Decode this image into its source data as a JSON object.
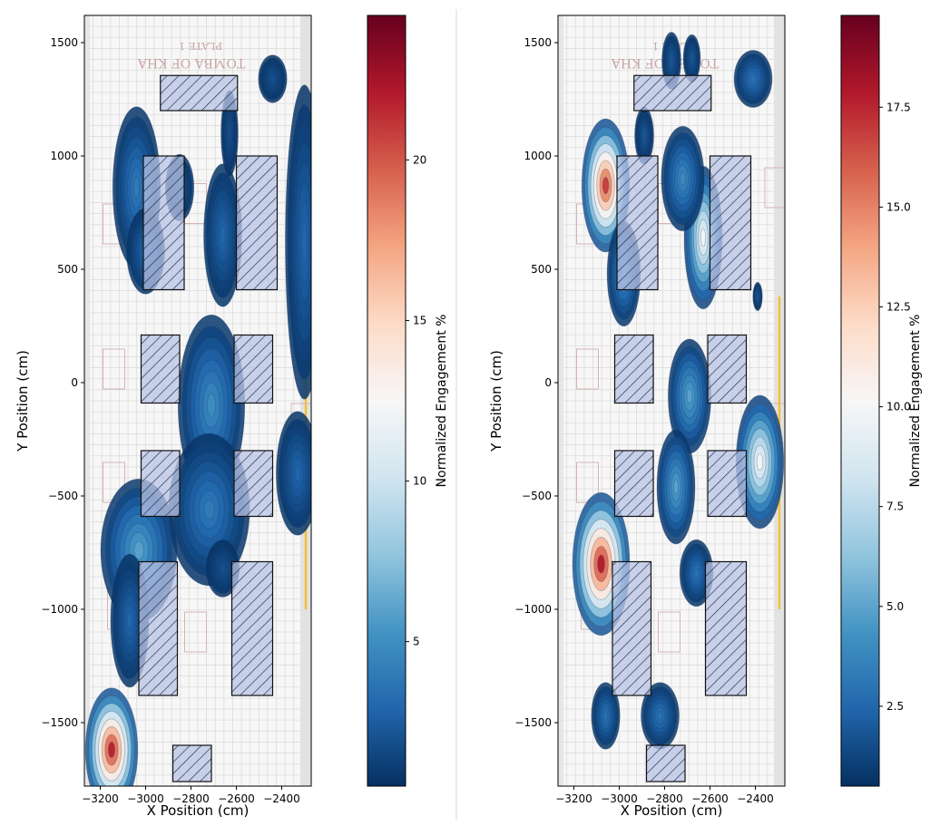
{
  "chart_data": [
    {
      "type": "heatmap",
      "panel": "left",
      "xlabel": "X Position (cm)",
      "ylabel": "Y Position (cm)",
      "xlim": [
        -3270,
        -2270
      ],
      "ylim": [
        -1780,
        1620
      ],
      "x_ticks": [
        -3200,
        -3000,
        -2800,
        -2600,
        -2400
      ],
      "x_tick_labels": [
        "−3200",
        "−3000",
        "−2800",
        "−2600",
        "−2400"
      ],
      "y_ticks": [
        -1500,
        -1000,
        -500,
        0,
        500,
        1000,
        1500
      ],
      "y_tick_labels": [
        "−1500",
        "−1000",
        "−500",
        "0",
        "500",
        "1000",
        "1500"
      ],
      "colorbar": {
        "label": "Normalized Engagement %",
        "colormap": "RdBu_r",
        "range": [
          0.5,
          24.5
        ],
        "ticks": [
          5,
          10,
          15,
          20
        ],
        "tick_labels": [
          "5",
          "10",
          "15",
          "20"
        ]
      },
      "background_text": "TOMBA OF KHA",
      "background_text_2": "PLATE 1",
      "hatched_zones": [
        {
          "x": [
            -3010,
            -2830
          ],
          "y": [
            410,
            1000
          ]
        },
        {
          "x": [
            -2600,
            -2420
          ],
          "y": [
            410,
            1000
          ]
        },
        {
          "x": [
            -3020,
            -2850
          ],
          "y": [
            -90,
            210
          ]
        },
        {
          "x": [
            -2610,
            -2440
          ],
          "y": [
            -90,
            210
          ]
        },
        {
          "x": [
            -3020,
            -2850
          ],
          "y": [
            -590,
            -300
          ]
        },
        {
          "x": [
            -2610,
            -2440
          ],
          "y": [
            -590,
            -300
          ]
        },
        {
          "x": [
            -3030,
            -2860
          ],
          "y": [
            -1380,
            -790
          ]
        },
        {
          "x": [
            -2620,
            -2440
          ],
          "y": [
            -1380,
            -790
          ]
        },
        {
          "x": [
            -2935,
            -2595
          ],
          "y": [
            1200,
            1355
          ]
        },
        {
          "x": [
            -2880,
            -2710
          ],
          "y": [
            -1760,
            -1600
          ]
        }
      ],
      "hotspots": [
        {
          "x": -3040,
          "y": 860,
          "sx": 50,
          "sy": 170,
          "peak": 4
        },
        {
          "x": -3000,
          "y": 580,
          "sx": 40,
          "sy": 90,
          "peak": 3
        },
        {
          "x": -2710,
          "y": -100,
          "sx": 70,
          "sy": 190,
          "peak": 5
        },
        {
          "x": -2720,
          "y": -560,
          "sx": 85,
          "sy": 160,
          "peak": 4
        },
        {
          "x": -2660,
          "y": -820,
          "sx": 35,
          "sy": 60,
          "peak": 2
        },
        {
          "x": -2330,
          "y": -400,
          "sx": 45,
          "sy": 130,
          "peak": 3
        },
        {
          "x": -2300,
          "y": 620,
          "sx": 40,
          "sy": 330,
          "peak": 3
        },
        {
          "x": -2660,
          "y": 650,
          "sx": 40,
          "sy": 150,
          "peak": 3
        },
        {
          "x": -2630,
          "y": 1100,
          "sx": 18,
          "sy": 90,
          "peak": 2
        },
        {
          "x": -2850,
          "y": 860,
          "sx": 30,
          "sy": 70,
          "peak": 2
        },
        {
          "x": -2440,
          "y": 1340,
          "sx": 30,
          "sy": 50,
          "peak": 2
        },
        {
          "x": -3030,
          "y": -740,
          "sx": 80,
          "sy": 150,
          "peak": 6
        },
        {
          "x": -3070,
          "y": -1050,
          "sx": 40,
          "sy": 140,
          "peak": 3
        },
        {
          "x": -3150,
          "y": -1620,
          "sx": 55,
          "sy": 130,
          "peak": 22
        }
      ]
    },
    {
      "type": "heatmap",
      "panel": "right",
      "xlabel": "X Position (cm)",
      "ylabel": "Y Position (cm)",
      "xlim": [
        -3270,
        -2270
      ],
      "ylim": [
        -1780,
        1620
      ],
      "x_ticks": [
        -3200,
        -3000,
        -2800,
        -2600,
        -2400
      ],
      "x_tick_labels": [
        "−3200",
        "−3000",
        "−2800",
        "−2600",
        "−2400"
      ],
      "y_ticks": [
        -1500,
        -1000,
        -500,
        0,
        500,
        1000,
        1500
      ],
      "y_tick_labels": [
        "−1500",
        "−1000",
        "−500",
        "0",
        "500",
        "1000",
        "1500"
      ],
      "colorbar": {
        "label": "Normalized Engagement %",
        "colormap": "RdBu_r",
        "range": [
          0.5,
          19.8
        ],
        "ticks": [
          2.5,
          5.0,
          7.5,
          10.0,
          12.5,
          15.0,
          17.5
        ],
        "tick_labels": [
          "2.5",
          "5.0",
          "7.5",
          "10.0",
          "12.5",
          "15.0",
          "17.5"
        ]
      },
      "background_text": "TOMBA OF KHA",
      "background_text_2": "PLATE 1",
      "hatched_zones": [
        {
          "x": [
            -3010,
            -2830
          ],
          "y": [
            410,
            1000
          ]
        },
        {
          "x": [
            -2600,
            -2420
          ],
          "y": [
            410,
            1000
          ]
        },
        {
          "x": [
            -3020,
            -2850
          ],
          "y": [
            -90,
            210
          ]
        },
        {
          "x": [
            -2610,
            -2440
          ],
          "y": [
            -90,
            210
          ]
        },
        {
          "x": [
            -3020,
            -2850
          ],
          "y": [
            -590,
            -300
          ]
        },
        {
          "x": [
            -2610,
            -2440
          ],
          "y": [
            -590,
            -300
          ]
        },
        {
          "x": [
            -3030,
            -2860
          ],
          "y": [
            -1380,
            -790
          ]
        },
        {
          "x": [
            -2620,
            -2440
          ],
          "y": [
            -1380,
            -790
          ]
        },
        {
          "x": [
            -2935,
            -2595
          ],
          "y": [
            1200,
            1355
          ]
        },
        {
          "x": [
            -2880,
            -2710
          ],
          "y": [
            -1760,
            -1600
          ]
        }
      ],
      "hotspots": [
        {
          "x": -3060,
          "y": 870,
          "sx": 50,
          "sy": 140,
          "peak": 17
        },
        {
          "x": -2980,
          "y": 480,
          "sx": 35,
          "sy": 110,
          "peak": 4
        },
        {
          "x": -2630,
          "y": 640,
          "sx": 40,
          "sy": 150,
          "peak": 10
        },
        {
          "x": -2720,
          "y": 900,
          "sx": 45,
          "sy": 110,
          "peak": 4
        },
        {
          "x": -2380,
          "y": -350,
          "sx": 50,
          "sy": 140,
          "peak": 10
        },
        {
          "x": -2690,
          "y": -60,
          "sx": 45,
          "sy": 120,
          "peak": 5
        },
        {
          "x": -2750,
          "y": -460,
          "sx": 40,
          "sy": 120,
          "peak": 5
        },
        {
          "x": -2660,
          "y": -840,
          "sx": 35,
          "sy": 70,
          "peak": 3
        },
        {
          "x": -3080,
          "y": -800,
          "sx": 60,
          "sy": 150,
          "peak": 18
        },
        {
          "x": -3060,
          "y": -1470,
          "sx": 30,
          "sy": 70,
          "peak": 3
        },
        {
          "x": -2820,
          "y": -1470,
          "sx": 40,
          "sy": 70,
          "peak": 3
        },
        {
          "x": -2410,
          "y": 1340,
          "sx": 40,
          "sy": 60,
          "peak": 3
        },
        {
          "x": -2770,
          "y": 1420,
          "sx": 20,
          "sy": 60,
          "peak": 2
        },
        {
          "x": -2680,
          "y": 1430,
          "sx": 18,
          "sy": 50,
          "peak": 2
        },
        {
          "x": -2890,
          "y": 1090,
          "sx": 20,
          "sy": 60,
          "peak": 2
        },
        {
          "x": -2390,
          "y": 380,
          "sx": 10,
          "sy": 30,
          "peak": 2
        }
      ]
    }
  ]
}
